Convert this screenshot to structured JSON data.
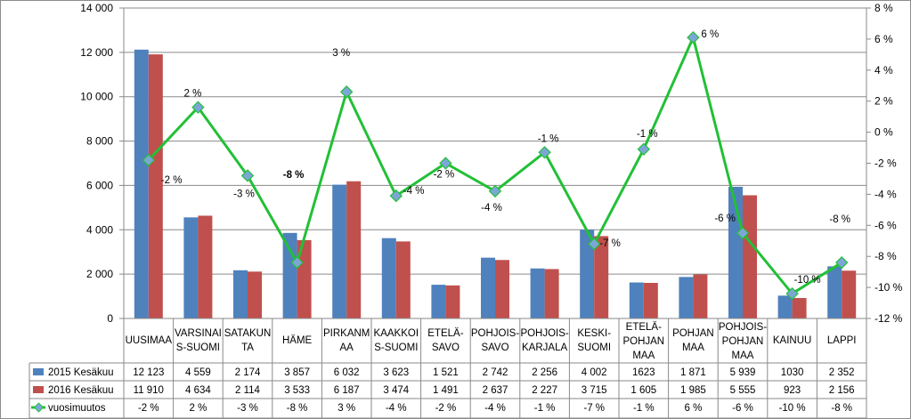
{
  "chart_data": {
    "type": "bar",
    "categories": [
      [
        "UUSIMAA"
      ],
      [
        "VARSINAI",
        "S-SUOMI"
      ],
      [
        "SATAKUN",
        "TA"
      ],
      [
        "HÄME"
      ],
      [
        "PIRKANM",
        "AA"
      ],
      [
        "KAAKKOI",
        "S-SUOMI"
      ],
      [
        "ETELÄ-",
        "SAVO"
      ],
      [
        "POHJOIS-",
        "SAVO"
      ],
      [
        "POHJOIS-",
        "KARJALA"
      ],
      [
        "KESKI-",
        "SUOMI"
      ],
      [
        "ETELÄ-",
        "POHJAN",
        "MAA"
      ],
      [
        "POHJAN",
        "MAA"
      ],
      [
        "POHJOIS-",
        "POHJAN",
        "MAA"
      ],
      [
        "KAINUU"
      ],
      [
        "LAPPI"
      ]
    ],
    "series": [
      {
        "name": "2015 Kesäkuu",
        "type": "bar",
        "axis": "left",
        "color": "#4f81bd",
        "values": [
          12123,
          4559,
          2174,
          3857,
          6032,
          3623,
          1521,
          2742,
          2256,
          4002,
          1623,
          1871,
          5939,
          1030,
          2352
        ],
        "table_values": [
          "12 123",
          "4 559",
          "2 174",
          "3 857",
          "6 032",
          "3 623",
          "1 521",
          "2 742",
          "2 256",
          "4 002",
          "1623",
          "1 871",
          "5 939",
          "1030",
          "2 352"
        ]
      },
      {
        "name": "2016 Kesäkuu",
        "type": "bar",
        "axis": "left",
        "color": "#c0504d",
        "values": [
          11910,
          4634,
          2114,
          3533,
          6187,
          3474,
          1491,
          2637,
          2227,
          3715,
          1605,
          1985,
          5555,
          923,
          2156
        ],
        "table_values": [
          "11 910",
          "4 634",
          "2 114",
          "3 533",
          "6 187",
          "3 474",
          "1 491",
          "2 637",
          "2 227",
          "3 715",
          "1 605",
          "1 985",
          "5 555",
          "923",
          "2 156"
        ]
      },
      {
        "name": "vuosimuutos",
        "type": "line",
        "axis": "right",
        "color": "#22c036",
        "marker_color": "#7da6d8",
        "values": [
          -1.8,
          1.6,
          -2.8,
          -8.4,
          2.6,
          -4.1,
          -2.0,
          -3.8,
          -1.3,
          -7.2,
          -1.1,
          6.1,
          -6.5,
          -10.4,
          -8.4
        ],
        "table_values": [
          "-2 %",
          "2 %",
          "-3 %",
          "-8 %",
          "3 %",
          "-4 %",
          "-2 %",
          "-4 %",
          "-1 %",
          "-7 %",
          "-1 %",
          "6 %",
          "-6 %",
          "-10 %",
          "-8 %"
        ]
      }
    ],
    "data_labels": [
      "-2 %",
      "2 %",
      "-3 %",
      "-8 %",
      "3 %",
      "-4 %",
      "-2 %",
      "-4 %",
      "-1 %",
      "-7 %",
      "-1 %",
      "6 %",
      "-6 %",
      "-10 %",
      "-8 %"
    ],
    "left_axis": {
      "min": 0,
      "max": 14000,
      "ticks": [
        0,
        2000,
        4000,
        6000,
        8000,
        10000,
        12000,
        14000
      ],
      "tick_labels": [
        "0",
        "2 000",
        "4 000",
        "6 000",
        "8 000",
        "10 000",
        "12 000",
        "14 000"
      ]
    },
    "right_axis": {
      "min": -12,
      "max": 8,
      "ticks": [
        -12,
        -10,
        -8,
        -6,
        -4,
        -2,
        0,
        2,
        4,
        6,
        8
      ],
      "tick_labels": [
        "-12 %",
        "-10 %",
        "-8 %",
        "-6 %",
        "-4 %",
        "-2 %",
        "0 %",
        "2 %",
        "4 %",
        "6 %",
        "8 %"
      ]
    },
    "grid": true,
    "legend": "data-table-below"
  }
}
